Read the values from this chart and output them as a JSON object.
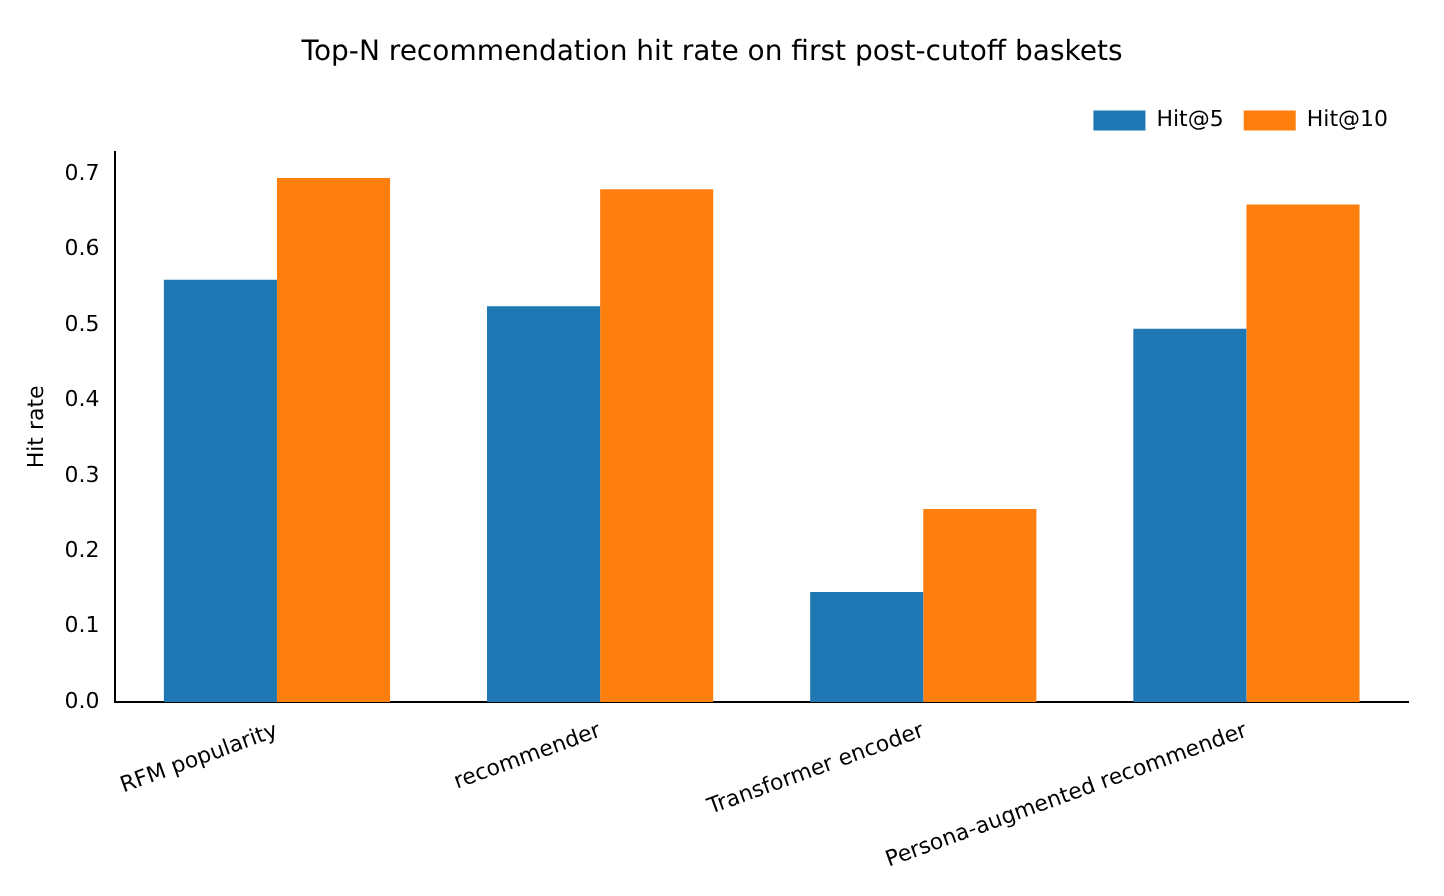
{
  "chart_data": {
    "type": "bar",
    "title": "Top-N recommendation hit rate on first post-cutoff baskets",
    "ylabel": "Hit rate",
    "categories": [
      "RFM popularity",
      "recommender",
      "Transformer encoder",
      "Persona-augmented recommender"
    ],
    "series": [
      {
        "name": "Hit@5",
        "color": "#1f77b4",
        "values": [
          0.56,
          0.525,
          0.146,
          0.495
        ]
      },
      {
        "name": "Hit@10",
        "color": "#ff7f0e",
        "values": [
          0.695,
          0.68,
          0.256,
          0.66
        ]
      }
    ],
    "ylim": [
      0,
      0.73
    ],
    "yticks": [
      {
        "value": 0,
        "label": "0.0"
      },
      0.1,
      0.2,
      0.3,
      0.4,
      0.5,
      0.6,
      0.7
    ],
    "grid": false,
    "legend": "top right"
  }
}
